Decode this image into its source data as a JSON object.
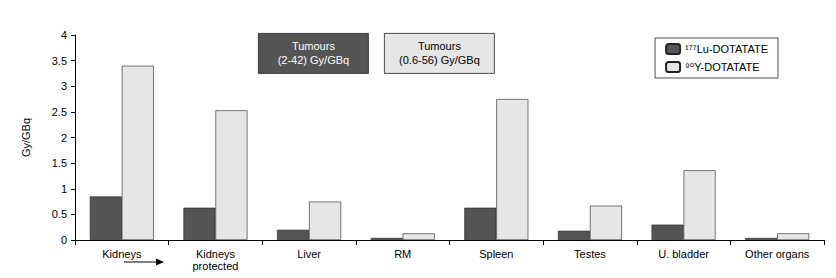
{
  "chart_data": {
    "type": "bar",
    "y_label": "Gy/GBq",
    "categories": [
      "Kidneys",
      "Kidneys\nprotected",
      "Liver",
      "RM",
      "Spleen",
      "Testes",
      "U. bladder",
      "Other organs"
    ],
    "series": [
      {
        "name": "¹⁷⁷Lu-DOTATATE",
        "color": "#555555",
        "values": [
          0.85,
          0.63,
          0.2,
          0.04,
          0.63,
          0.18,
          0.3,
          0.04
        ]
      },
      {
        "name": "⁹⁰Y-DOTATATE",
        "color": "#e6e6e6",
        "values": [
          3.4,
          2.53,
          0.75,
          0.13,
          2.75,
          0.67,
          1.36,
          0.13
        ]
      }
    ],
    "annotations": [
      "Tumours\n(2-42) Gy/GBq",
      "Tumours\n(0.6-56) Gy/GBq"
    ],
    "ylim": [
      0,
      4
    ],
    "yticks": [
      0,
      0.5,
      1,
      1.5,
      2,
      2.5,
      3,
      3.5,
      4
    ],
    "grid": false,
    "legend": "upper right"
  }
}
